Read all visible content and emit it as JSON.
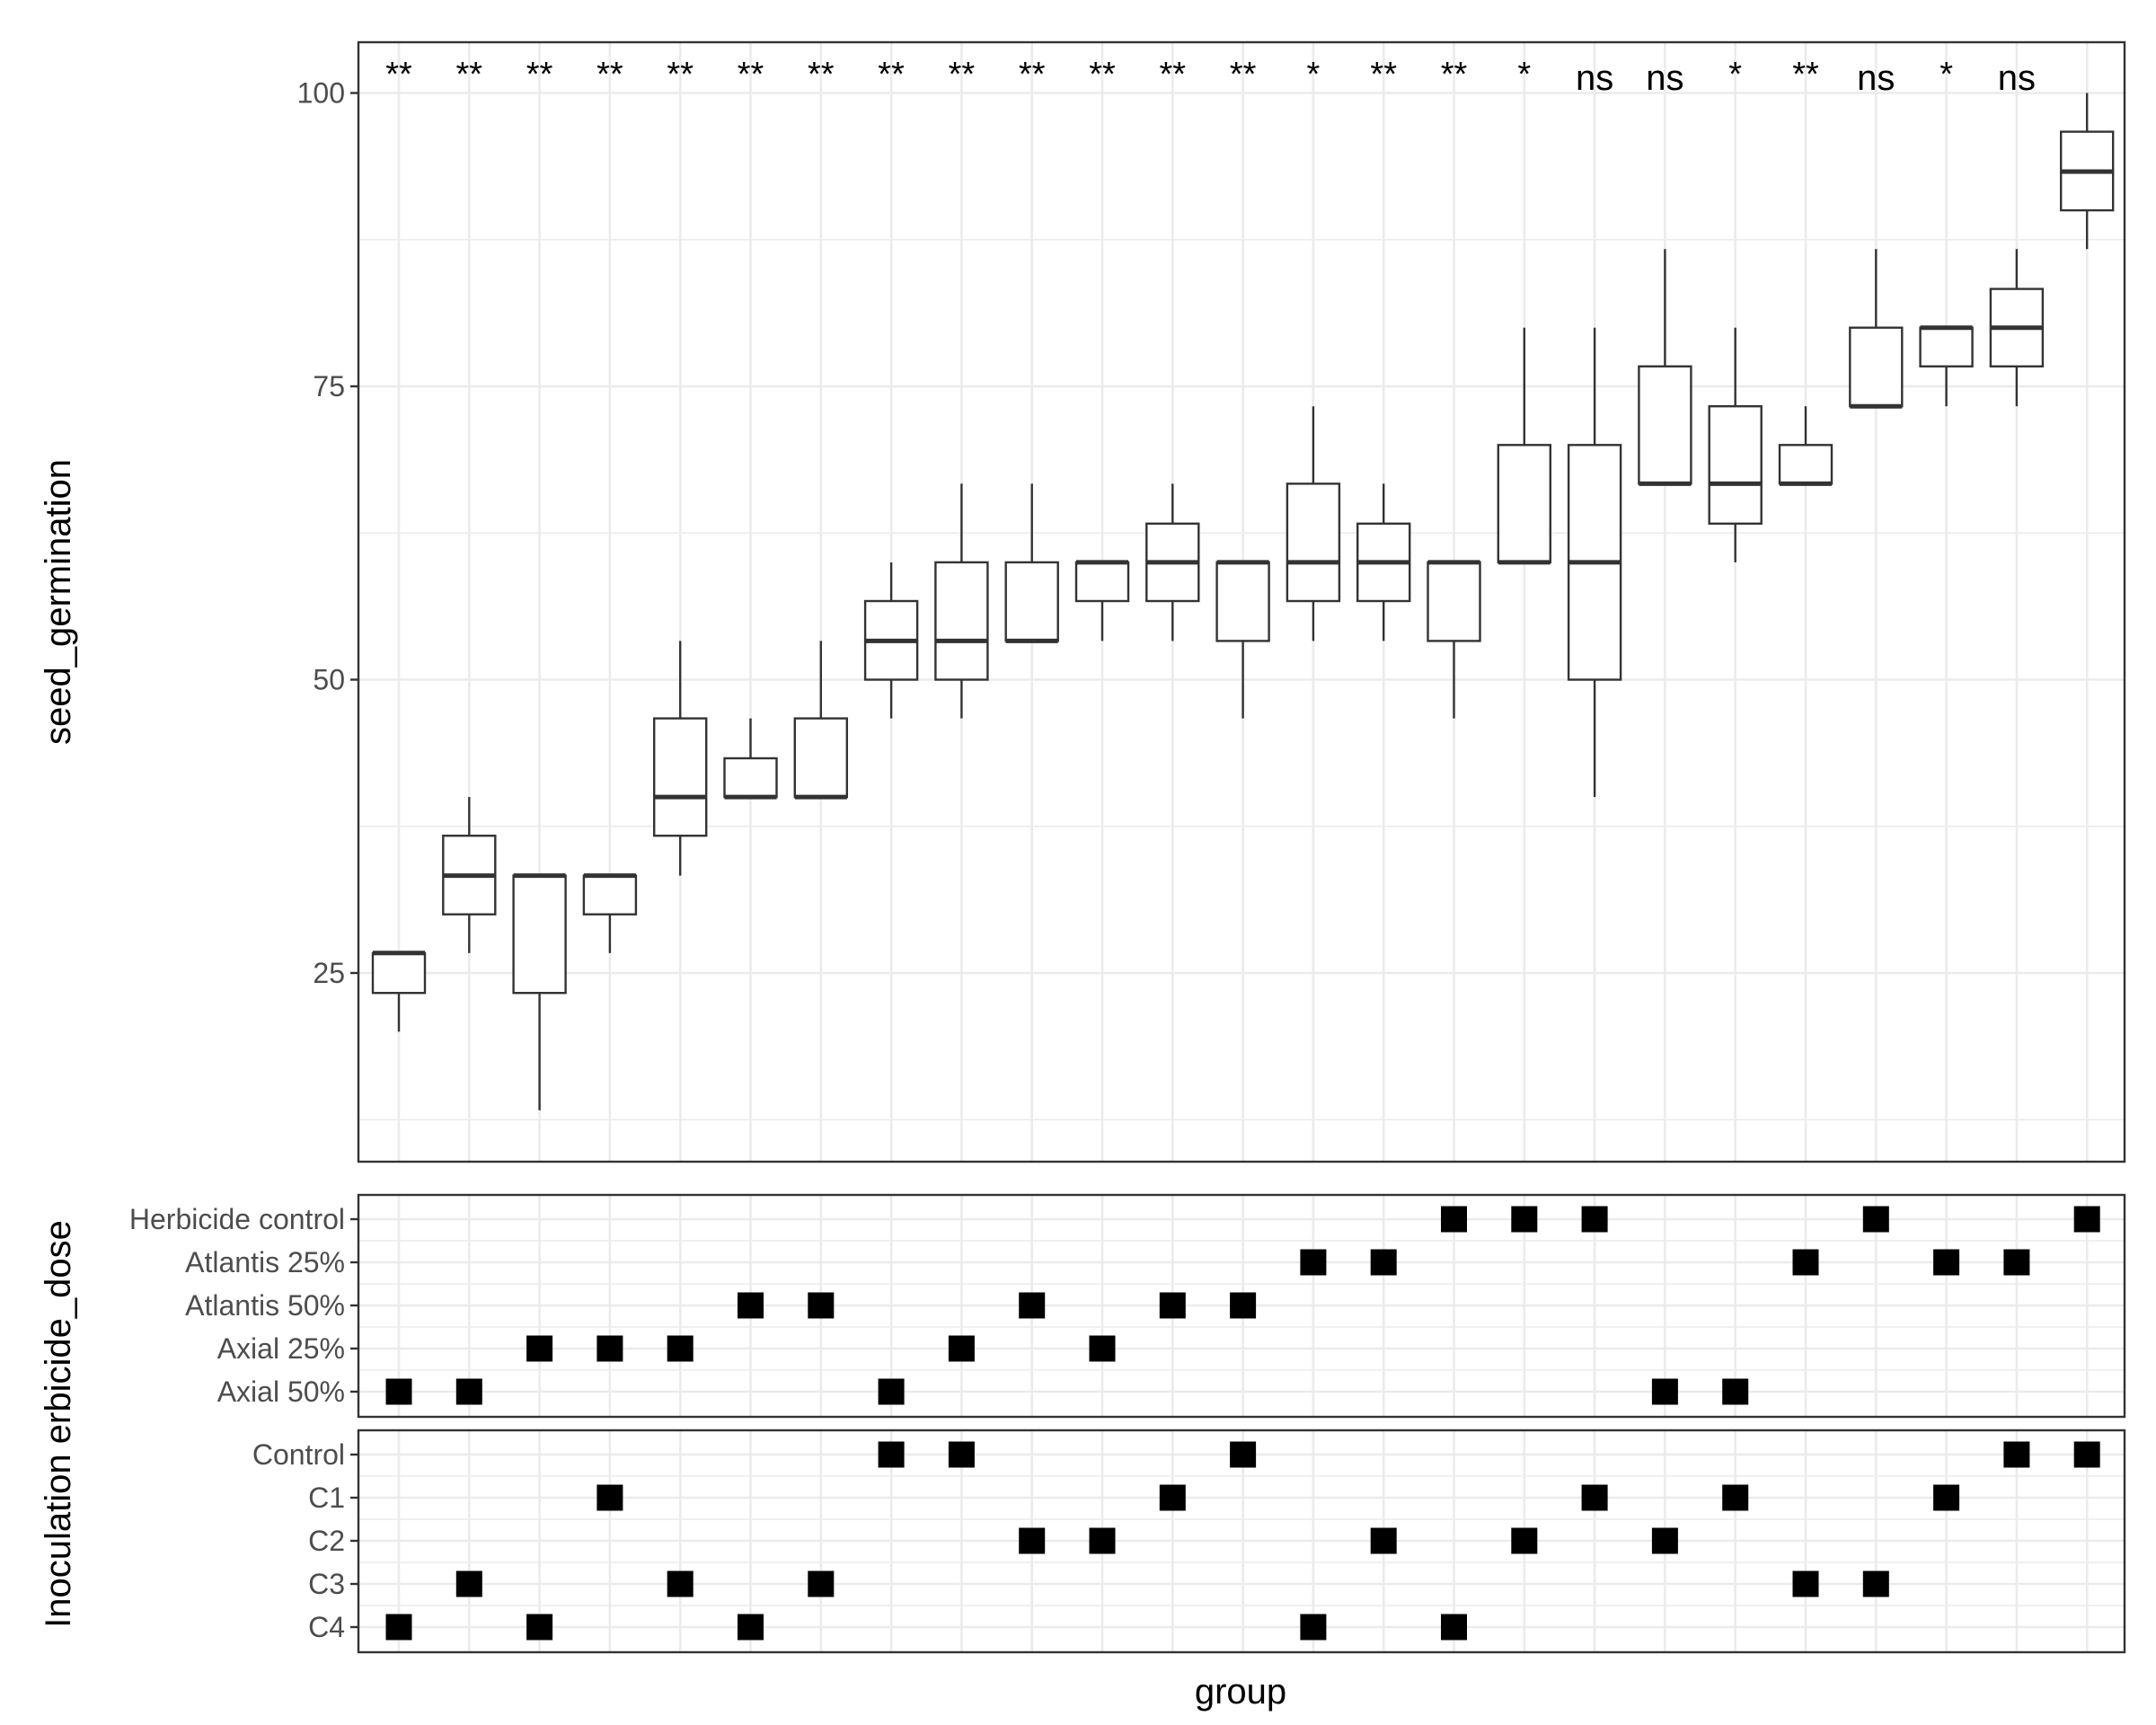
{
  "chart_data": {
    "type": "boxplot",
    "xlabel": "group",
    "ylabel_top": "seed_germination",
    "ylabel_bottom": "Inoculation erbicide_dose",
    "ylim": [
      10,
      103.5
    ],
    "yticks": [
      25,
      50,
      75,
      100
    ],
    "grid": true,
    "boxes": [
      {
        "min": 20.0,
        "q1": 23.3,
        "median": 26.7,
        "q3": 26.7,
        "max": 26.7,
        "sig": "**",
        "dose": "Axial 50%",
        "inoc": "C4"
      },
      {
        "min": 26.7,
        "q1": 30.0,
        "median": 33.3,
        "q3": 36.7,
        "max": 40.0,
        "sig": "**",
        "dose": "Axial 50%",
        "inoc": "C3"
      },
      {
        "min": 13.3,
        "q1": 23.3,
        "median": 33.3,
        "q3": 33.3,
        "max": 33.3,
        "sig": "**",
        "dose": "Axial 25%",
        "inoc": "C4"
      },
      {
        "min": 26.7,
        "q1": 30.0,
        "median": 33.3,
        "q3": 33.3,
        "max": 33.3,
        "sig": "**",
        "dose": "Axial 25%",
        "inoc": "C1"
      },
      {
        "min": 33.3,
        "q1": 36.7,
        "median": 40.0,
        "q3": 46.7,
        "max": 53.3,
        "sig": "**",
        "dose": "Axial 25%",
        "inoc": "C3"
      },
      {
        "min": 40.0,
        "q1": 40.0,
        "median": 40.0,
        "q3": 43.3,
        "max": 46.7,
        "sig": "**",
        "dose": "Atlantis 50%",
        "inoc": "C4"
      },
      {
        "min": 40.0,
        "q1": 40.0,
        "median": 40.0,
        "q3": 46.7,
        "max": 53.3,
        "sig": "**",
        "dose": "Atlantis 50%",
        "inoc": "C3"
      },
      {
        "min": 46.7,
        "q1": 50.0,
        "median": 53.3,
        "q3": 56.7,
        "max": 60.0,
        "sig": "**",
        "dose": "Axial 50%",
        "inoc": "Control"
      },
      {
        "min": 46.7,
        "q1": 50.0,
        "median": 53.3,
        "q3": 60.0,
        "max": 66.7,
        "sig": "**",
        "dose": "Axial 25%",
        "inoc": "Control"
      },
      {
        "min": 53.3,
        "q1": 53.3,
        "median": 53.3,
        "q3": 60.0,
        "max": 66.7,
        "sig": "**",
        "dose": "Atlantis 50%",
        "inoc": "C2"
      },
      {
        "min": 53.3,
        "q1": 56.7,
        "median": 60.0,
        "q3": 60.0,
        "max": 60.0,
        "sig": "**",
        "dose": "Axial 25%",
        "inoc": "C2"
      },
      {
        "min": 53.3,
        "q1": 56.7,
        "median": 60.0,
        "q3": 63.3,
        "max": 66.7,
        "sig": "**",
        "dose": "Atlantis 50%",
        "inoc": "C1"
      },
      {
        "min": 46.7,
        "q1": 53.3,
        "median": 60.0,
        "q3": 60.0,
        "max": 60.0,
        "sig": "**",
        "dose": "Atlantis 50%",
        "inoc": "Control"
      },
      {
        "min": 53.3,
        "q1": 56.7,
        "median": 60.0,
        "q3": 66.7,
        "max": 73.3,
        "sig": "*",
        "dose": "Atlantis 25%",
        "inoc": "C4"
      },
      {
        "min": 53.3,
        "q1": 56.7,
        "median": 60.0,
        "q3": 63.3,
        "max": 66.7,
        "sig": "**",
        "dose": "Atlantis 25%",
        "inoc": "C2"
      },
      {
        "min": 46.7,
        "q1": 53.3,
        "median": 60.0,
        "q3": 60.0,
        "max": 60.0,
        "sig": "**",
        "dose": "Herbicide control",
        "inoc": "C4"
      },
      {
        "min": 60.0,
        "q1": 60.0,
        "median": 60.0,
        "q3": 70.0,
        "max": 80.0,
        "sig": "*",
        "dose": "Herbicide control",
        "inoc": "C2"
      },
      {
        "min": 40.0,
        "q1": 50.0,
        "median": 60.0,
        "q3": 70.0,
        "max": 80.0,
        "sig": "ns",
        "dose": "Herbicide control",
        "inoc": "C1"
      },
      {
        "min": 66.7,
        "q1": 66.7,
        "median": 66.7,
        "q3": 76.7,
        "max": 86.7,
        "sig": "ns",
        "dose": "Axial 50%",
        "inoc": "C2"
      },
      {
        "min": 60.0,
        "q1": 63.3,
        "median": 66.7,
        "q3": 73.3,
        "max": 80.0,
        "sig": "*",
        "dose": "Axial 50%",
        "inoc": "C1"
      },
      {
        "min": 66.7,
        "q1": 66.7,
        "median": 66.7,
        "q3": 70.0,
        "max": 73.3,
        "sig": "**",
        "dose": "Atlantis 25%",
        "inoc": "C3"
      },
      {
        "min": 73.3,
        "q1": 73.3,
        "median": 73.3,
        "q3": 80.0,
        "max": 86.7,
        "sig": "ns",
        "dose": "Herbicide control",
        "inoc": "C3"
      },
      {
        "min": 73.3,
        "q1": 76.7,
        "median": 80.0,
        "q3": 80.0,
        "max": 80.0,
        "sig": "*",
        "dose": "Atlantis 25%",
        "inoc": "C1"
      },
      {
        "min": 73.3,
        "q1": 76.7,
        "median": 80.0,
        "q3": 83.3,
        "max": 86.7,
        "sig": "ns",
        "dose": "Atlantis 25%",
        "inoc": "Control"
      },
      {
        "min": 86.7,
        "q1": 90.0,
        "median": 93.3,
        "q3": 96.7,
        "max": 100.0,
        "sig": "",
        "dose": "Herbicide control",
        "inoc": "Control"
      }
    ],
    "dose_levels": [
      "Herbicide control",
      "Atlantis 25%",
      "Atlantis 50%",
      "Axial 25%",
      "Axial 50%"
    ],
    "inoc_levels": [
      "Control",
      "C1",
      "C2",
      "C3",
      "C4"
    ]
  }
}
